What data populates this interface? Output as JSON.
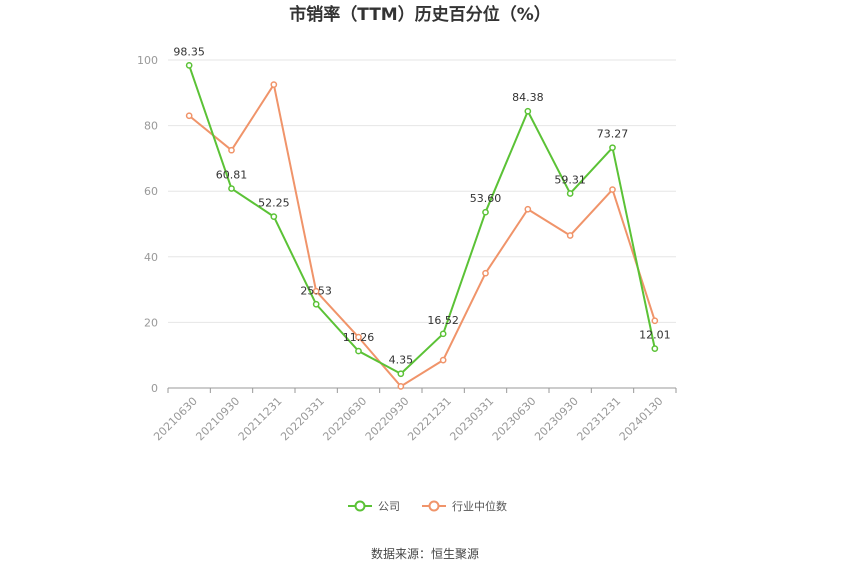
{
  "chart_data": {
    "type": "line",
    "title": "市销率（TTM）历史百分位（%）",
    "categories": [
      "20210630",
      "20210930",
      "20211231",
      "20220331",
      "20220630",
      "20220930",
      "20221231",
      "20230331",
      "20230630",
      "20230930",
      "20231231",
      "20240130"
    ],
    "series": [
      {
        "name": "公司",
        "color": "#5bc236",
        "values": [
          98.35,
          60.81,
          52.25,
          25.53,
          11.26,
          4.35,
          16.52,
          53.6,
          84.38,
          59.31,
          73.27,
          12.01
        ],
        "labels": [
          "98.35",
          "60.81",
          "52.25",
          "25.53",
          "11.26",
          "4.35",
          "16.52",
          "53.60",
          "84.38",
          "59.31",
          "73.27",
          "12.01"
        ]
      },
      {
        "name": "行业中位数",
        "color": "#f0946a",
        "values": [
          83,
          72.5,
          92.5,
          29.5,
          15.5,
          0.5,
          8.5,
          35,
          54.5,
          46.5,
          60.5,
          20.5
        ]
      }
    ],
    "ylim": [
      0,
      100
    ],
    "yticks": [
      0,
      20,
      40,
      60,
      80,
      100
    ],
    "grid": true,
    "legend": "bottom-center"
  },
  "source": "数据来源：恒生聚源"
}
